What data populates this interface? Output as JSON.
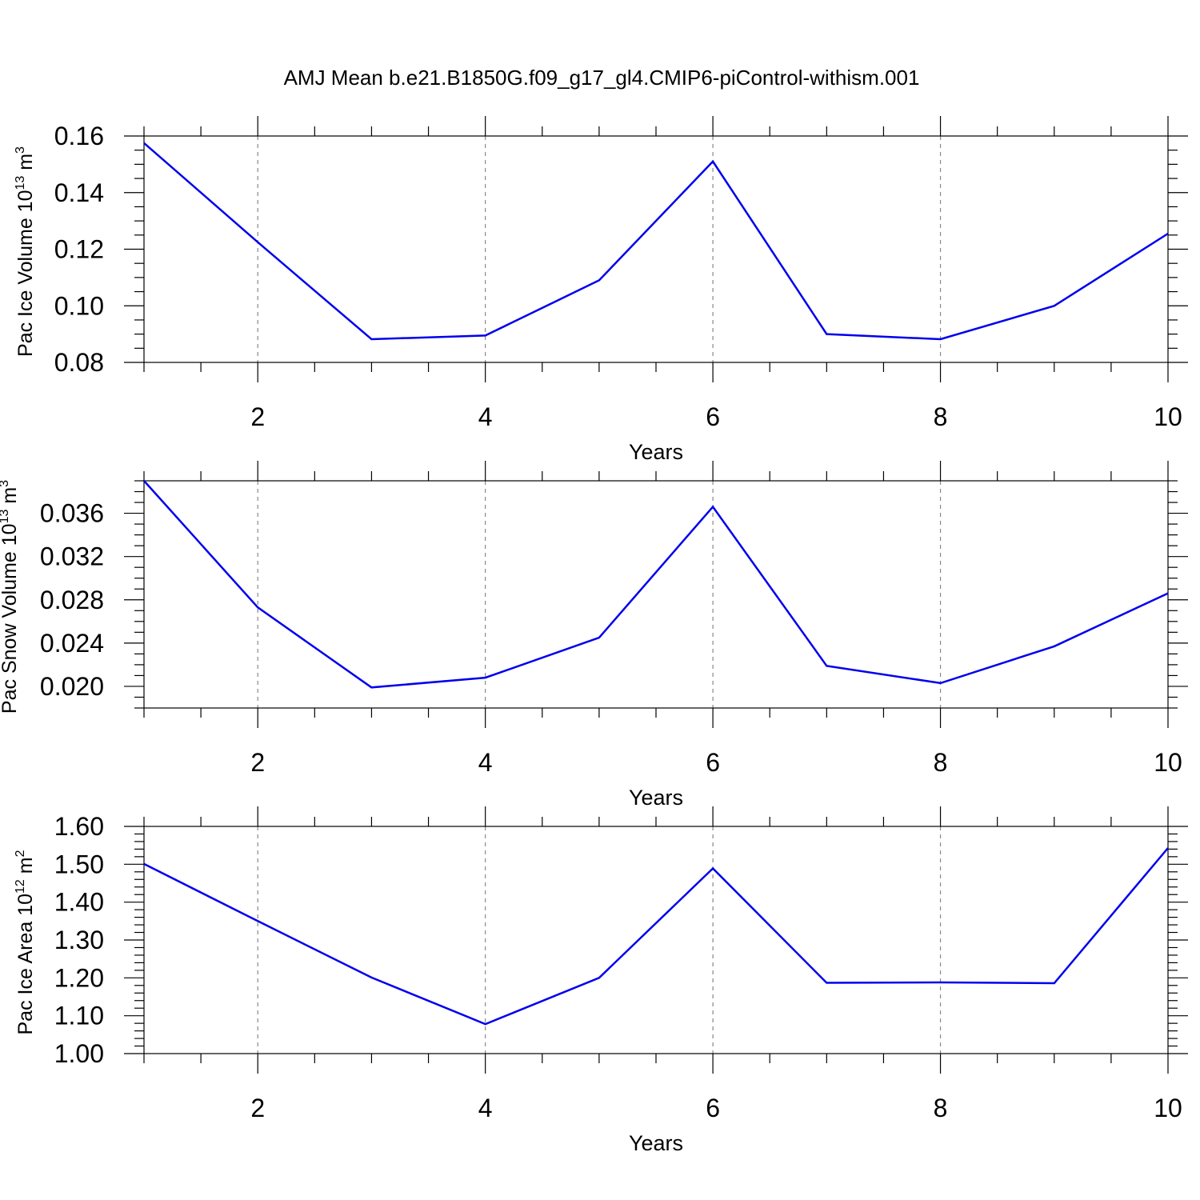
{
  "title": "AMJ Mean b.e21.B1850G.f09_g17_gl4.CMIP6-piControl-withism.001",
  "chart_data": [
    {
      "type": "line",
      "ylabel": "Pac Ice Volume 10",
      "ylabel_sup": "13",
      "ylabel_unit": "m",
      "ylabel_unit_sup": "3",
      "xlabel": "Years",
      "xlim": [
        1,
        10
      ],
      "ylim": [
        0.08,
        0.16
      ],
      "xticks": [
        2,
        4,
        6,
        8,
        10
      ],
      "xtick_labels": [
        "2",
        "4",
        "6",
        "8",
        "10"
      ],
      "yticks": [
        0.08,
        0.1,
        0.12,
        0.14,
        0.16
      ],
      "ytick_labels": [
        "0.08",
        "0.10",
        "0.12",
        "0.14",
        "0.16"
      ],
      "y_minor_step": 0.005,
      "x": [
        1,
        2,
        3,
        4,
        5,
        6,
        7,
        8,
        9,
        10
      ],
      "values": [
        0.1575,
        0.1225,
        0.0882,
        0.0895,
        0.109,
        0.151,
        0.09,
        0.0882,
        0.1,
        0.1255
      ],
      "color": "#0000ee",
      "grid": "vertical dashed at major x ticks"
    },
    {
      "type": "line",
      "ylabel": "Pac Snow Volume 10",
      "ylabel_sup": "13",
      "ylabel_unit": "m",
      "ylabel_unit_sup": "3",
      "xlabel": "Years",
      "xlim": [
        1,
        10
      ],
      "ylim": [
        0.018,
        0.039
      ],
      "xticks": [
        2,
        4,
        6,
        8,
        10
      ],
      "xtick_labels": [
        "2",
        "4",
        "6",
        "8",
        "10"
      ],
      "yticks": [
        0.02,
        0.024,
        0.028,
        0.032,
        0.036
      ],
      "ytick_labels": [
        "0.020",
        "0.024",
        "0.028",
        "0.032",
        "0.036"
      ],
      "y_minor_step": 0.001,
      "x": [
        1,
        2,
        3,
        4,
        5,
        6,
        7,
        8,
        9,
        10
      ],
      "values": [
        0.039,
        0.0273,
        0.0199,
        0.0208,
        0.0245,
        0.0366,
        0.0219,
        0.0203,
        0.0237,
        0.0286
      ],
      "color": "#0000ee",
      "grid": "vertical dashed at major x ticks"
    },
    {
      "type": "line",
      "ylabel": "Pac Ice Area 10",
      "ylabel_sup": "12",
      "ylabel_unit": "m",
      "ylabel_unit_sup": "2",
      "xlabel": "Years",
      "xlim": [
        1,
        10
      ],
      "ylim": [
        1.0,
        1.6
      ],
      "xticks": [
        2,
        4,
        6,
        8,
        10
      ],
      "xtick_labels": [
        "2",
        "4",
        "6",
        "8",
        "10"
      ],
      "yticks": [
        1.0,
        1.1,
        1.2,
        1.3,
        1.4,
        1.5,
        1.6
      ],
      "ytick_labels": [
        "1.00",
        "1.10",
        "1.20",
        "1.30",
        "1.40",
        "1.50",
        "1.60"
      ],
      "y_minor_step": 0.02,
      "x": [
        1,
        2,
        3,
        4,
        5,
        6,
        7,
        8,
        9,
        10
      ],
      "values": [
        1.501,
        1.35,
        1.201,
        1.078,
        1.2,
        1.489,
        1.187,
        1.188,
        1.186,
        1.543
      ],
      "color": "#0000ee",
      "grid": "vertical dashed at major x ticks"
    }
  ]
}
